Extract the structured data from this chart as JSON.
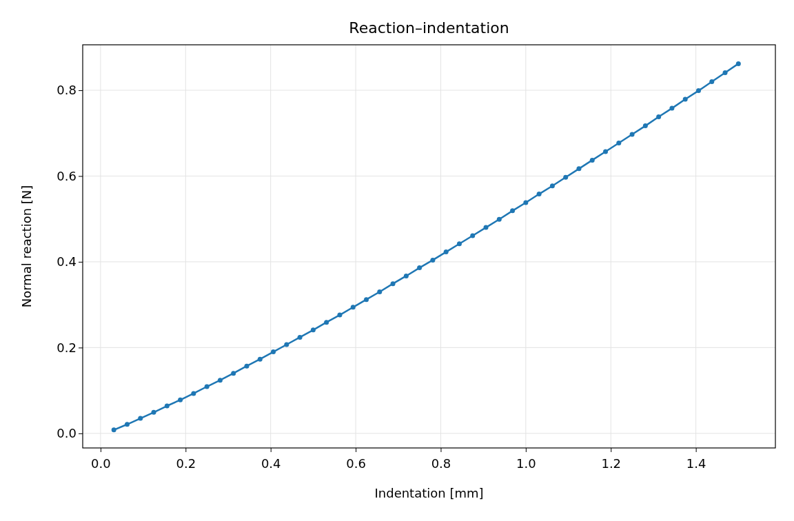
{
  "chart_data": {
    "type": "line",
    "title": "Reaction–indentation",
    "xlabel": "Indentation [mm]",
    "ylabel": "Normal reaction [N]",
    "x": [
      0.03125,
      0.0625,
      0.09375,
      0.125,
      0.15625,
      0.1875,
      0.21875,
      0.25,
      0.28125,
      0.3125,
      0.34375,
      0.375,
      0.40625,
      0.4375,
      0.46875,
      0.5,
      0.53125,
      0.5625,
      0.59375,
      0.625,
      0.65625,
      0.6875,
      0.71875,
      0.75,
      0.78125,
      0.8125,
      0.84375,
      0.875,
      0.90625,
      0.9375,
      0.96875,
      1.0,
      1.03125,
      1.0625,
      1.09375,
      1.125,
      1.15625,
      1.1875,
      1.21875,
      1.25,
      1.28125,
      1.3125,
      1.34375,
      1.375,
      1.40625,
      1.4375,
      1.46875,
      1.5
    ],
    "series": [
      {
        "color": "#1f77b4",
        "values": [
          0.008,
          0.021,
          0.035,
          0.049,
          0.064,
          0.078,
          0.093,
          0.109,
          0.124,
          0.14,
          0.157,
          0.173,
          0.19,
          0.207,
          0.224,
          0.241,
          0.259,
          0.276,
          0.294,
          0.312,
          0.33,
          0.349,
          0.367,
          0.386,
          0.404,
          0.423,
          0.442,
          0.461,
          0.48,
          0.499,
          0.519,
          0.538,
          0.558,
          0.577,
          0.597,
          0.617,
          0.637,
          0.657,
          0.677,
          0.697,
          0.717,
          0.738,
          0.758,
          0.779,
          0.799,
          0.82,
          0.841,
          0.862
        ]
      }
    ],
    "xlim": [
      -0.042,
      1.587
    ],
    "xticks": [
      {
        "value": 0,
        "label": "0.0"
      },
      0.2,
      0.4,
      0.6,
      0.8,
      {
        "value": 1,
        "label": "1.0"
      },
      1.2,
      1.4
    ],
    "ylim": [
      -0.034,
      0.906
    ],
    "yticks": [
      {
        "value": 0,
        "label": "0.0"
      },
      0.2,
      0.4,
      0.6,
      0.8
    ],
    "grid": true,
    "marker": "circle",
    "line_style": "solid"
  }
}
